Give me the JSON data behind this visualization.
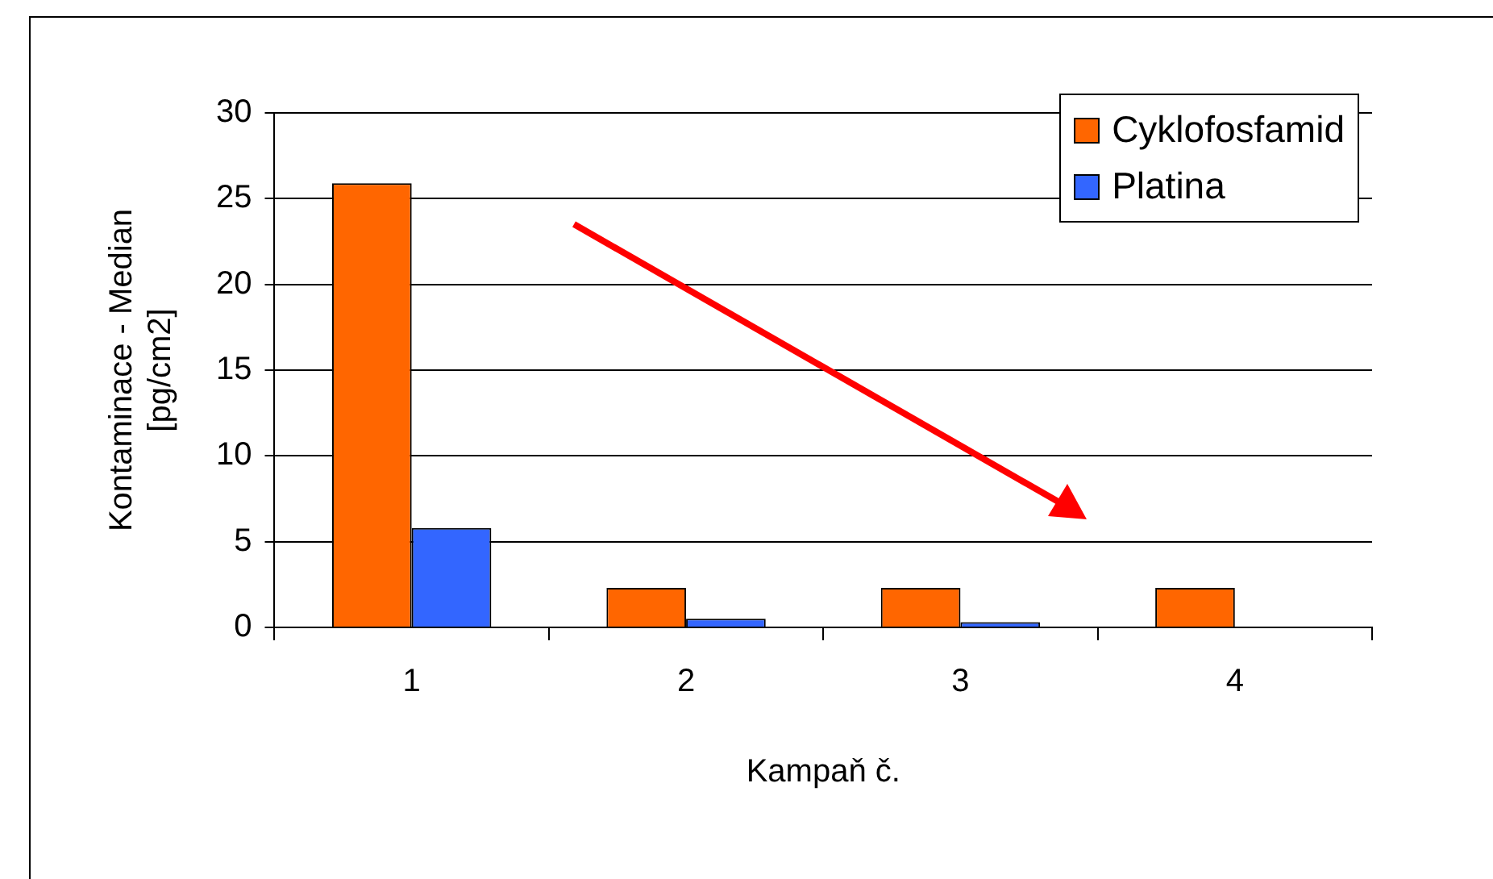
{
  "chart_data": {
    "type": "bar",
    "categories": [
      "1",
      "2",
      "3",
      "4"
    ],
    "series": [
      {
        "name": "Cyklofosfamid",
        "color": "#ff6600",
        "values": [
          25.9,
          2.3,
          2.3,
          2.3
        ]
      },
      {
        "name": "Platina",
        "color": "#3366ff",
        "values": [
          5.8,
          0.5,
          0.3,
          0
        ]
      }
    ],
    "xlabel": "Kampaň č.",
    "ylabel": "Kontaminace - Median [pg/cm2]",
    "ylim": [
      0,
      30
    ],
    "yticks": [
      0,
      5,
      10,
      15,
      20,
      25,
      30
    ],
    "grid": "y",
    "legend": "top right"
  }
}
